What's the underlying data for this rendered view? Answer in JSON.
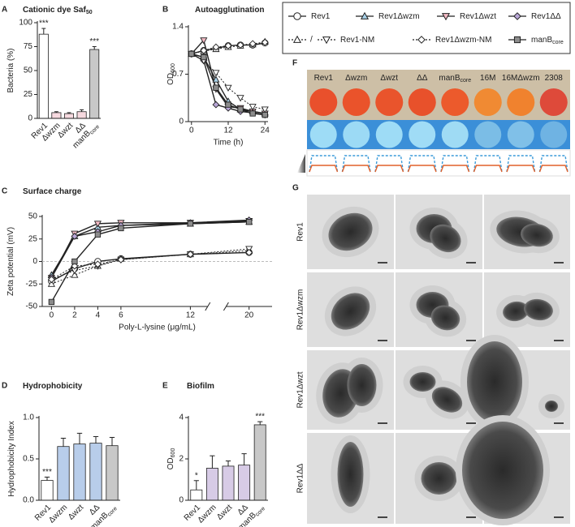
{
  "chart_data": [
    {
      "panel": "A",
      "type": "bar",
      "title": "Cationic dye Saf",
      "title_subscript": "50",
      "ylabel": "Bacteria (%)",
      "categories": [
        "Rev1",
        "Δwzm",
        "Δwzt",
        "ΔΔ",
        "manB"
      ],
      "category_subscripts": [
        null,
        null,
        null,
        null,
        "core"
      ],
      "values": [
        88,
        6,
        5,
        7,
        72
      ],
      "errors": [
        6,
        1,
        1,
        2,
        3
      ],
      "colors": [
        "#ffffff",
        "#f6d9df",
        "#f6d9df",
        "#f6d9df",
        "#c8c8c8"
      ],
      "annotations": [
        "***",
        null,
        null,
        null,
        "***"
      ],
      "ylim": [
        0,
        100
      ],
      "yticks": [
        0,
        25,
        50,
        75,
        100
      ]
    },
    {
      "panel": "B",
      "type": "line",
      "title": "Autoagglutination",
      "xlabel": "Time (h)",
      "ylabel": "OD",
      "ylabel_subscript": "600",
      "x": [
        0,
        4,
        8,
        12,
        16,
        20,
        24
      ],
      "series": [
        {
          "marker": "circle",
          "color": "#ffffff",
          "dash": "solid",
          "values": [
            1.0,
            1.05,
            1.08,
            1.12,
            1.13,
            1.13,
            1.16
          ]
        },
        {
          "marker": "triangle-up",
          "color": "#a9d3ea",
          "dash": "solid",
          "values": [
            1.0,
            0.95,
            0.62,
            0.3,
            0.18,
            0.15,
            0.12
          ]
        },
        {
          "marker": "triangle-down",
          "color": "#f3b9c3",
          "dash": "solid",
          "values": [
            1.0,
            1.2,
            0.48,
            0.22,
            0.2,
            0.15,
            0.12
          ]
        },
        {
          "marker": "diamond",
          "color": "#b8a6d6",
          "dash": "solid",
          "values": [
            1.0,
            0.9,
            0.25,
            0.2,
            0.15,
            0.13,
            0.1
          ]
        },
        {
          "marker": "triangle-up",
          "color": "#ffffff",
          "dash": "dotted",
          "values": [
            1.0,
            1.04,
            1.07,
            1.1,
            1.12,
            1.14,
            1.18
          ]
        },
        {
          "marker": "triangle-down",
          "color": "#ffffff",
          "dash": "dotted",
          "values": [
            1.0,
            0.9,
            0.72,
            0.5,
            0.35,
            0.22,
            0.18
          ]
        },
        {
          "marker": "diamond",
          "color": "#ffffff",
          "dash": "dotted",
          "values": [
            1.0,
            1.05,
            1.1,
            1.12,
            1.13,
            1.15,
            1.17
          ]
        },
        {
          "marker": "square",
          "color": "#8c8c8c",
          "dash": "solid",
          "values": [
            1.0,
            0.95,
            0.5,
            0.25,
            0.18,
            0.12,
            0.1
          ]
        }
      ],
      "xlim": [
        -1,
        25
      ],
      "xticks": [
        0,
        12,
        24
      ],
      "ylim": [
        0,
        1.4
      ],
      "yticks": [
        0,
        0.7,
        1.4
      ]
    },
    {
      "panel": "C",
      "type": "line",
      "title": "Surface charge",
      "xlabel": "Poly-L-lysine (μg/mL)",
      "ylabel": "Zeta potential (mV)",
      "x": [
        0,
        2,
        4,
        6,
        12,
        20
      ],
      "series": [
        {
          "marker": "circle",
          "color": "#ffffff",
          "dash": "solid",
          "values": [
            -22,
            -8,
            0,
            3,
            8,
            10
          ]
        },
        {
          "marker": "triangle-up",
          "color": "#a9d3ea",
          "dash": "solid",
          "values": [
            -15,
            28,
            38,
            40,
            42,
            44
          ]
        },
        {
          "marker": "triangle-down",
          "color": "#f3b9c3",
          "dash": "solid",
          "values": [
            -18,
            31,
            42,
            43,
            43,
            45
          ]
        },
        {
          "marker": "diamond",
          "color": "#b8a6d6",
          "dash": "solid",
          "values": [
            -18,
            28,
            33,
            40,
            43,
            46
          ]
        },
        {
          "marker": "triangle-up",
          "color": "#ffffff",
          "dash": "dotted",
          "values": [
            -25,
            -15,
            -5,
            3,
            8,
            12
          ]
        },
        {
          "marker": "triangle-down",
          "color": "#ffffff",
          "dash": "dotted",
          "values": [
            -20,
            -10,
            -5,
            2,
            8,
            14
          ]
        },
        {
          "marker": "diamond",
          "color": "#ffffff",
          "dash": "dotted",
          "values": [
            -20,
            -5,
            -3,
            2,
            8,
            10
          ]
        },
        {
          "marker": "square",
          "color": "#8c8c8c",
          "dash": "solid",
          "values": [
            -45,
            0,
            30,
            37,
            42,
            44
          ]
        }
      ],
      "xlim": [
        -0.8,
        21
      ],
      "x_break": [
        13.5,
        19
      ],
      "xticks": [
        0,
        2,
        4,
        6,
        12,
        20
      ],
      "ylim": [
        -50,
        50
      ],
      "yticks": [
        -50,
        -25,
        0,
        25,
        50
      ],
      "zero_line": true
    },
    {
      "panel": "D",
      "type": "bar",
      "title": "Hydrophobicity",
      "ylabel": "Hydrophobicity Index",
      "categories": [
        "Rev1",
        "Δwzm",
        "Δwzt",
        "ΔΔ",
        "manB"
      ],
      "category_subscripts": [
        null,
        null,
        null,
        null,
        "core"
      ],
      "values": [
        0.24,
        0.65,
        0.68,
        0.69,
        0.66
      ],
      "errors": [
        0.04,
        0.1,
        0.13,
        0.08,
        0.1
      ],
      "colors": [
        "#ffffff",
        "#b8cdea",
        "#b8cdea",
        "#b8cdea",
        "#c8c8c8"
      ],
      "annotations": [
        "***",
        null,
        null,
        null,
        null
      ],
      "ylim": [
        0,
        1
      ],
      "yticks": [
        {
          "value": 0,
          "label": "0.0"
        },
        0.5,
        {
          "value": 1,
          "label": "1.0"
        }
      ]
    },
    {
      "panel": "E",
      "type": "bar",
      "title": "Biofilm",
      "ylabel": "OD",
      "ylabel_subscript": "600",
      "categories": [
        "Rev1",
        "Δwzm",
        "Δwzt",
        "ΔΔ",
        "manB"
      ],
      "category_subscripts": [
        null,
        null,
        null,
        null,
        "core"
      ],
      "values": [
        0.5,
        1.55,
        1.65,
        1.7,
        3.65
      ],
      "errors": [
        0.45,
        0.6,
        0.25,
        0.55,
        0.15
      ],
      "colors": [
        "#ffffff",
        "#d7cbe6",
        "#d7cbe6",
        "#d7cbe6",
        "#c8c8c8"
      ],
      "annotations": [
        "*",
        null,
        null,
        null,
        "***"
      ],
      "ylim": [
        0,
        4
      ],
      "yticks": [
        0,
        2,
        4
      ]
    }
  ],
  "legend": {
    "separator": "/",
    "entries": [
      {
        "label": "Rev1",
        "markers": [
          "circle"
        ],
        "color": "#ffffff",
        "dash": "solid"
      },
      {
        "label": "Rev1Δwzm",
        "markers": [
          "triangle-up"
        ],
        "color": "#a9d3ea",
        "dash": "solid"
      },
      {
        "label": "Rev1Δwzt",
        "markers": [
          "triangle-down"
        ],
        "color": "#f3b9c3",
        "dash": "solid"
      },
      {
        "label": "Rev1ΔΔ",
        "markers": [
          "diamond"
        ],
        "color": "#b8a6d6",
        "dash": "solid"
      },
      {
        "label": "Rev1-NM",
        "markers": [
          "triangle-up",
          "triangle-down"
        ],
        "color": "#ffffff",
        "dash": "dotted"
      },
      {
        "label": "Rev1Δwzm-NM",
        "markers": [
          "diamond"
        ],
        "color": "#ffffff",
        "dash": "dotted"
      },
      {
        "label": "manB",
        "subscript": "core",
        "markers": [
          "square"
        ],
        "color": "#8c8c8c",
        "dash": "solid"
      }
    ]
  },
  "panel_f": {
    "label": "F",
    "columns": [
      "Rev1",
      "Δwzm",
      "Δwzt",
      "ΔΔ",
      "manB",
      "16M",
      "16MΔwzm",
      "2308"
    ],
    "column_subscripts": [
      null,
      null,
      null,
      null,
      "core",
      null,
      null,
      null
    ]
  },
  "panel_g": {
    "label": "G",
    "rows": [
      "Rev1",
      "Rev1Δwzm",
      "Rev1Δwzt",
      "Rev1ΔΔ"
    ]
  }
}
